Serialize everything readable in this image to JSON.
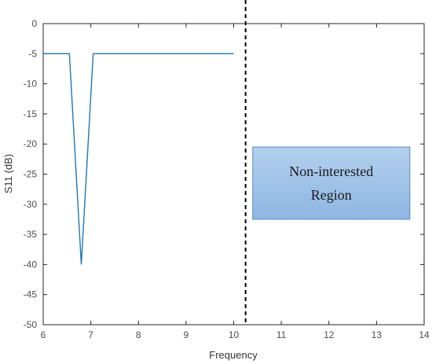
{
  "chart_data": {
    "type": "line",
    "xlabel": "Frequency",
    "ylabel": "S11 (dB)",
    "xlim": [
      6,
      14
    ],
    "ylim": [
      -50,
      0
    ],
    "x_ticks": [
      6,
      7,
      8,
      9,
      10,
      11,
      12,
      13,
      14
    ],
    "y_ticks": [
      0,
      -5,
      -10,
      -15,
      -20,
      -25,
      -30,
      -35,
      -40,
      -45,
      -50
    ],
    "grid": false,
    "series": [
      {
        "color": "#1f77b4",
        "x": [
          6.0,
          6.55,
          6.8,
          7.05,
          10.0
        ],
        "y": [
          -5,
          -5,
          -40,
          -5,
          -5
        ]
      }
    ],
    "annotations": [
      {
        "type": "dashed-vline",
        "x": 10.25,
        "color": "#000000"
      },
      {
        "type": "box",
        "lines": [
          "Non-interested",
          "Region"
        ],
        "x_range": [
          10.4,
          13.7
        ],
        "y_range": [
          -32.5,
          -20.5
        ],
        "fill": "#9dc3e6",
        "stroke": "#5a8ac6"
      }
    ]
  }
}
